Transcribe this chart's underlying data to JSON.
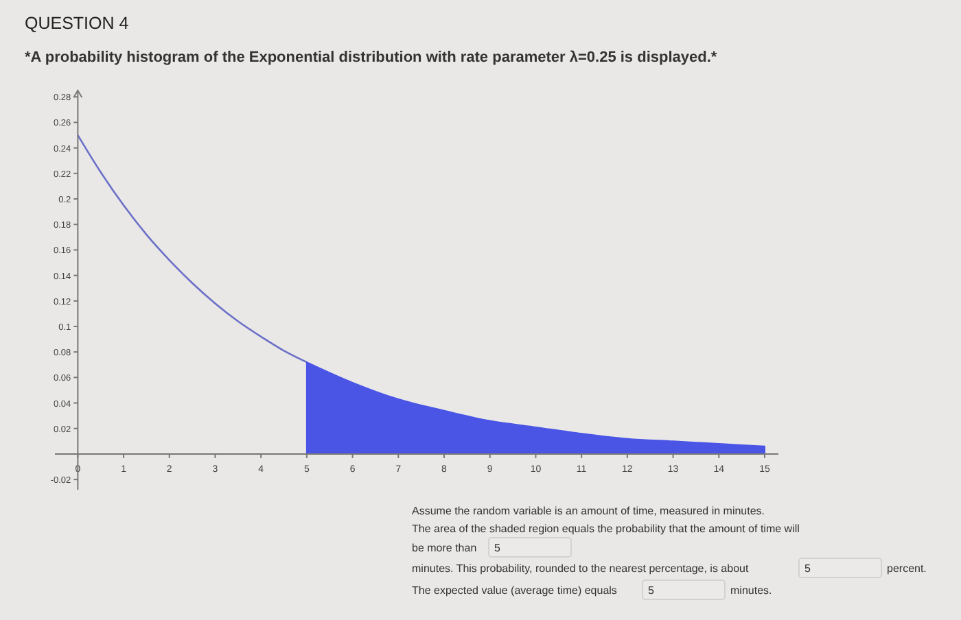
{
  "chart_data": {
    "type": "line",
    "title": "QUESTION 4",
    "subtitle": "*A probability histogram of the Exponential distribution with rate parameter λ=0.25 is displayed.*",
    "series": [
      {
        "color": "#6b70c8",
        "x": [
          0,
          0.5,
          1,
          1.5,
          2,
          2.5,
          3,
          3.5,
          4,
          4.5,
          5
        ],
        "values": [
          0.25,
          0.221,
          0.195,
          0.172,
          0.152,
          0.134,
          0.118,
          0.104,
          0.092,
          0.081,
          0.072
        ]
      },
      {
        "type": "area",
        "color": "#4a55e6",
        "x": [
          5,
          6,
          7,
          8,
          9,
          10,
          11,
          12,
          13,
          14,
          15
        ],
        "values": [
          0.072,
          0.056,
          0.043,
          0.034,
          0.026,
          0.021,
          0.016,
          0.012,
          0.01,
          0.008,
          0.006
        ]
      }
    ],
    "xlim": [
      -0.5,
      15.3
    ],
    "ylim": [
      -0.028,
      0.285
    ],
    "xticks": [
      0,
      1,
      2,
      3,
      4,
      5,
      6,
      7,
      8,
      9,
      10,
      11,
      12,
      13,
      14,
      15
    ],
    "yticks": [
      -0.02,
      0.02,
      0.04,
      0.06,
      0.08,
      0.1,
      0.12,
      0.14,
      0.16,
      0.18,
      0.2,
      0.22,
      0.24,
      0.26,
      0.28
    ],
    "grid": false,
    "annotations": [
      "Assume the random variable is an amount of time, measured in minutes.",
      "The area of the shaded region equals the probability that the amount of time will",
      "be more than",
      "5",
      "minutes. This probability, rounded to the nearest percentage, is about",
      "5",
      "percent.",
      "The expected value (average time) equals",
      "5",
      "minutes."
    ]
  }
}
